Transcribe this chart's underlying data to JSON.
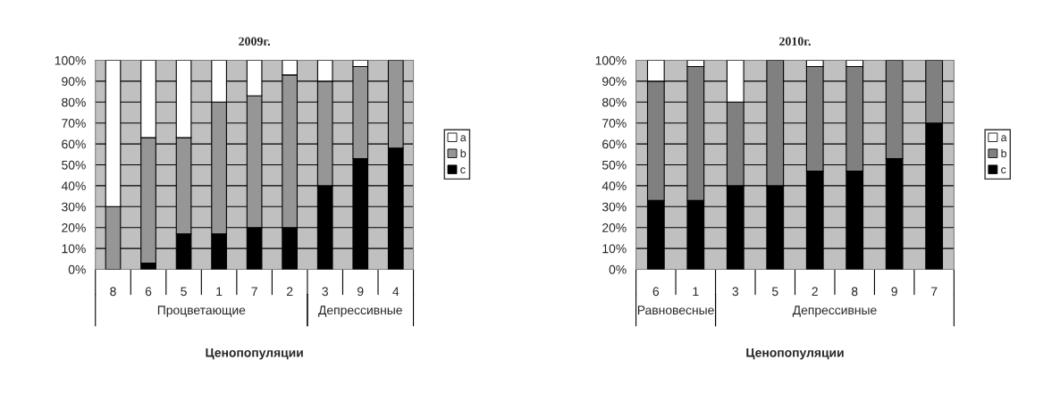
{
  "chart_data": [
    {
      "type": "bar",
      "title": "2009г.",
      "xlabel": "Ценопопуляции",
      "stacked": true,
      "grid": "y",
      "legend": "right",
      "categories": [
        "8",
        "6",
        "5",
        "1",
        "7",
        "2",
        "3",
        "9",
        "4"
      ],
      "series": [
        {
          "name": "c",
          "color": "#000000",
          "values": [
            0,
            3,
            17,
            17,
            20,
            20,
            40,
            53,
            58
          ]
        },
        {
          "name": "b",
          "color": "#969696",
          "values": [
            30,
            60,
            46,
            63,
            63,
            73,
            50,
            44,
            42
          ]
        },
        {
          "name": "a",
          "color": "#ffffff",
          "values": [
            70,
            37,
            37,
            20,
            17,
            7,
            10,
            3,
            0
          ]
        }
      ],
      "ylim": [
        0,
        100
      ],
      "yticks": [
        {
          "value": 0,
          "label": "0%"
        },
        {
          "value": 10,
          "label": "10%"
        },
        {
          "value": 20,
          "label": "20%"
        },
        {
          "value": 30,
          "label": "30%"
        },
        {
          "value": 40,
          "label": "40%"
        },
        {
          "value": 50,
          "label": "50%"
        },
        {
          "value": 60,
          "label": "60%"
        },
        {
          "value": 70,
          "label": "70%"
        },
        {
          "value": 80,
          "label": "80%"
        },
        {
          "value": 90,
          "label": "90%"
        },
        {
          "value": 100,
          "label": "100%"
        }
      ],
      "annotations": [
        "Процветающие",
        "Депрессивные"
      ]
    },
    {
      "type": "bar",
      "title": "2010г.",
      "xlabel": "Ценопопуляции",
      "stacked": true,
      "grid": "y",
      "legend": "right",
      "categories": [
        "6",
        "1",
        "3",
        "5",
        "2",
        "8",
        "9",
        "7"
      ],
      "series": [
        {
          "name": "c",
          "color": "#000000",
          "values": [
            33,
            33,
            40,
            40,
            47,
            47,
            53,
            70
          ]
        },
        {
          "name": "b",
          "color": "#808080",
          "values": [
            57,
            64,
            40,
            60,
            50,
            50,
            47,
            30
          ]
        },
        {
          "name": "a",
          "color": "#ffffff",
          "values": [
            10,
            3,
            20,
            0,
            3,
            3,
            0,
            0
          ]
        }
      ],
      "ylim": [
        0,
        100
      ],
      "yticks": [
        {
          "value": 0,
          "label": "0%"
        },
        {
          "value": 10,
          "label": "10%"
        },
        {
          "value": 20,
          "label": "20%"
        },
        {
          "value": 30,
          "label": "30%"
        },
        {
          "value": 40,
          "label": "40%"
        },
        {
          "value": 50,
          "label": "50%"
        },
        {
          "value": 60,
          "label": "60%"
        },
        {
          "value": 70,
          "label": "70%"
        },
        {
          "value": 80,
          "label": "80%"
        },
        {
          "value": 90,
          "label": "90%"
        },
        {
          "value": 100,
          "label": "100%"
        }
      ],
      "annotations": [
        "Равновесные",
        "Депрессивные"
      ]
    }
  ]
}
